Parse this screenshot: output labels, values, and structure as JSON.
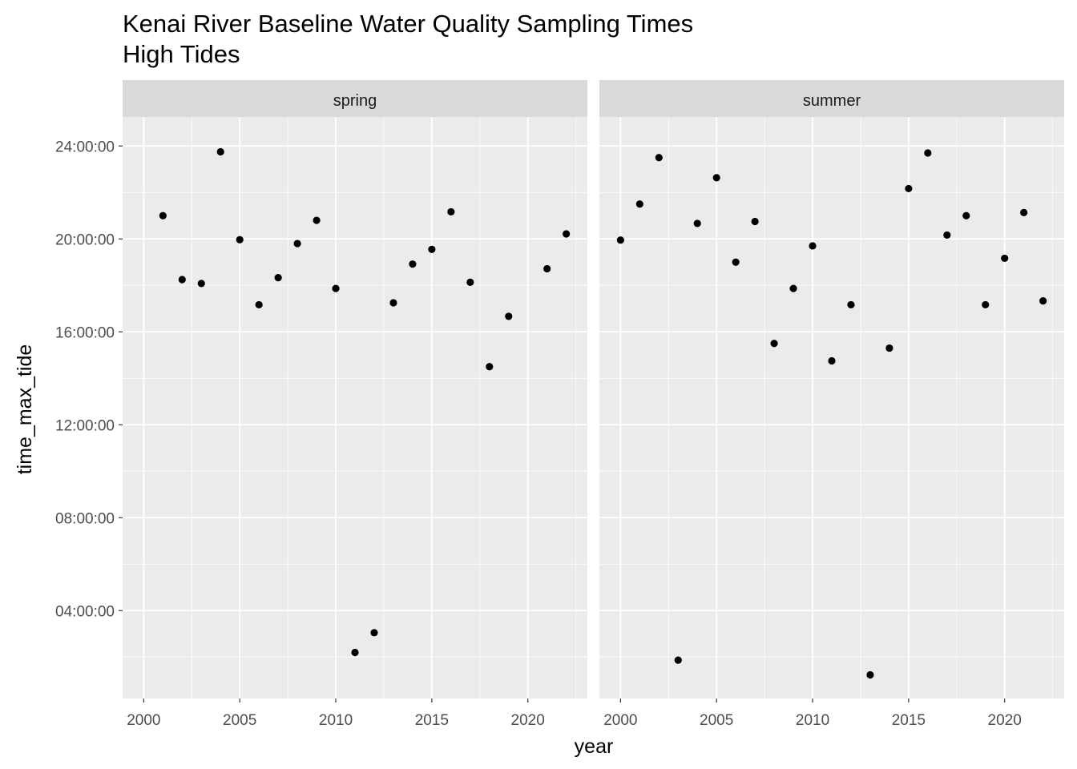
{
  "chart_data": {
    "type": "scatter",
    "title": "Kenai River Baseline Water Quality Sampling Times",
    "subtitle": "High Tides",
    "xlabel": "year",
    "ylabel": "time_max_tide",
    "xlim": [
      1998.9,
      2023.1
    ],
    "ylim": [
      "00:13:00",
      "25:15:00"
    ],
    "x_ticks": [
      2000,
      2005,
      2010,
      2015,
      2020
    ],
    "y_ticks": [
      "04:00:00",
      "08:00:00",
      "12:00:00",
      "16:00:00",
      "20:00:00",
      "24:00:00"
    ],
    "grid": true,
    "point_color": "#000000",
    "panel_background": "#ebebeb",
    "strip_background": "#d9d9d9",
    "panels": [
      {
        "name": "spring",
        "points": [
          {
            "x": 2001,
            "y": "21:00:00"
          },
          {
            "x": 2002,
            "y": "18:15:00"
          },
          {
            "x": 2003,
            "y": "18:05:00"
          },
          {
            "x": 2004,
            "y": "23:45:00"
          },
          {
            "x": 2005,
            "y": "19:58:00"
          },
          {
            "x": 2006,
            "y": "17:10:00"
          },
          {
            "x": 2007,
            "y": "18:20:00"
          },
          {
            "x": 2008,
            "y": "19:48:00"
          },
          {
            "x": 2009,
            "y": "20:48:00"
          },
          {
            "x": 2010,
            "y": "17:52:00"
          },
          {
            "x": 2011,
            "y": "02:12:00"
          },
          {
            "x": 2012,
            "y": "03:03:00"
          },
          {
            "x": 2013,
            "y": "17:15:00"
          },
          {
            "x": 2014,
            "y": "18:55:00"
          },
          {
            "x": 2015,
            "y": "19:33:00"
          },
          {
            "x": 2016,
            "y": "21:10:00"
          },
          {
            "x": 2017,
            "y": "18:08:00"
          },
          {
            "x": 2018,
            "y": "14:30:00"
          },
          {
            "x": 2019,
            "y": "16:40:00"
          },
          {
            "x": 2021,
            "y": "18:43:00"
          },
          {
            "x": 2022,
            "y": "20:13:00"
          }
        ]
      },
      {
        "name": "summer",
        "points": [
          {
            "x": 2000,
            "y": "19:57:00"
          },
          {
            "x": 2001,
            "y": "21:30:00"
          },
          {
            "x": 2002,
            "y": "23:30:00"
          },
          {
            "x": 2003,
            "y": "01:52:00"
          },
          {
            "x": 2004,
            "y": "20:40:00"
          },
          {
            "x": 2005,
            "y": "22:38:00"
          },
          {
            "x": 2006,
            "y": "19:00:00"
          },
          {
            "x": 2007,
            "y": "20:45:00"
          },
          {
            "x": 2008,
            "y": "15:30:00"
          },
          {
            "x": 2009,
            "y": "17:52:00"
          },
          {
            "x": 2010,
            "y": "19:42:00"
          },
          {
            "x": 2011,
            "y": "14:45:00"
          },
          {
            "x": 2012,
            "y": "17:10:00"
          },
          {
            "x": 2013,
            "y": "01:14:00"
          },
          {
            "x": 2014,
            "y": "15:18:00"
          },
          {
            "x": 2015,
            "y": "22:10:00"
          },
          {
            "x": 2016,
            "y": "23:42:00"
          },
          {
            "x": 2017,
            "y": "20:10:00"
          },
          {
            "x": 2018,
            "y": "21:00:00"
          },
          {
            "x": 2019,
            "y": "17:10:00"
          },
          {
            "x": 2020,
            "y": "19:10:00"
          },
          {
            "x": 2021,
            "y": "21:08:00"
          },
          {
            "x": 2022,
            "y": "17:20:00"
          }
        ]
      }
    ]
  }
}
